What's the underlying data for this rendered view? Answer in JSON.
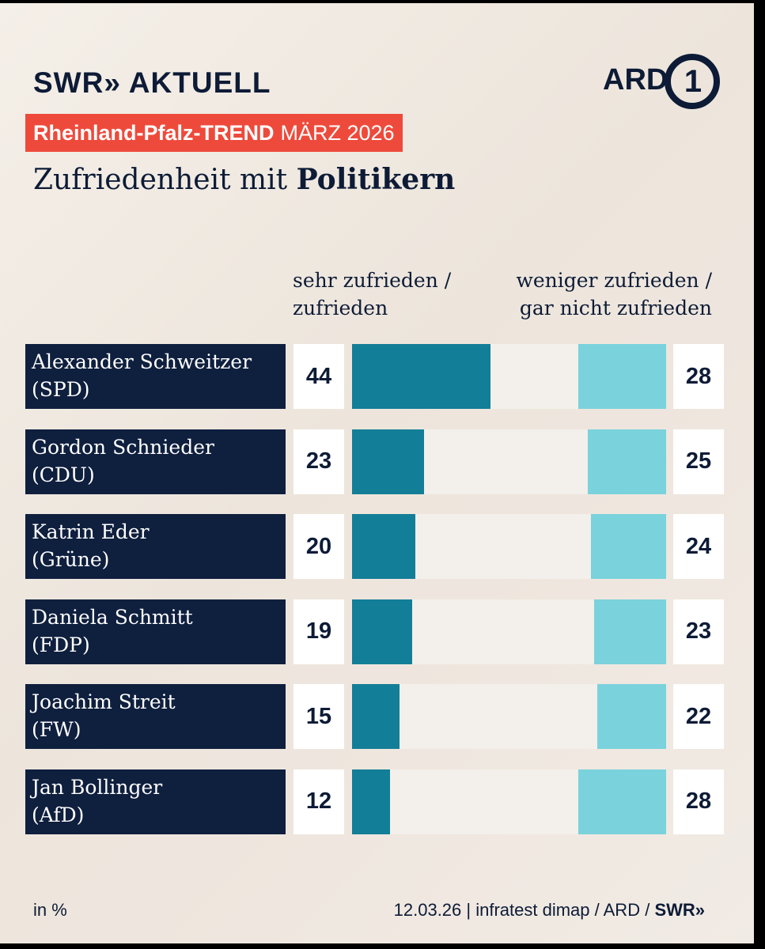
{
  "brand": {
    "logo_left": "SWR» AKTUELL",
    "logo_right": "ARD",
    "logo_right_glyph": "1"
  },
  "banner": {
    "bold": "Rheinland-Pfalz-TREND",
    "regular": "MÄRZ 2026",
    "color": "#ee4a3b"
  },
  "headline": {
    "regular": "Zufriedenheit mit",
    "bold": "Politikern"
  },
  "columns": {
    "left_line1": "sehr zufrieden /",
    "left_line2": "zufrieden",
    "right_line1": "weniger zufrieden /",
    "right_line2": "gar nicht zufrieden"
  },
  "chart_data": {
    "type": "bar",
    "unit": "in %",
    "categories": [
      "Alexander Schweitzer (SPD)",
      "Gordon Schnieder (CDU)",
      "Katrin Eder (Grüne)",
      "Daniela Schmitt (FDP)",
      "Joachim Streit (FW)",
      "Jan Bollinger (AfD)"
    ],
    "series": [
      {
        "name": "sehr zufrieden / zufrieden",
        "values": [
          44,
          23,
          20,
          19,
          15,
          12
        ],
        "color": "#137e97"
      },
      {
        "name": "weniger zufrieden / gar nicht zufrieden",
        "values": [
          28,
          25,
          24,
          23,
          22,
          28
        ],
        "color": "#7ad2dc"
      }
    ],
    "rows": [
      {
        "name": "Alexander Schweitzer",
        "party": "(SPD)",
        "pos": 44,
        "neg": 28
      },
      {
        "name": "Gordon Schnieder",
        "party": "(CDU)",
        "pos": 23,
        "neg": 25
      },
      {
        "name": "Katrin Eder",
        "party": "(Grüne)",
        "pos": 20,
        "neg": 24
      },
      {
        "name": "Daniela Schmitt",
        "party": "(FDP)",
        "pos": 19,
        "neg": 23
      },
      {
        "name": "Joachim Streit",
        "party": "(FW)",
        "pos": 15,
        "neg": 22
      },
      {
        "name": "Jan Bollinger",
        "party": "(AfD)",
        "pos": 12,
        "neg": 28
      }
    ]
  },
  "footer": {
    "unit": "in %",
    "source": "12.03.26 | infratest dimap / ARD /",
    "brand": "SWR»"
  }
}
